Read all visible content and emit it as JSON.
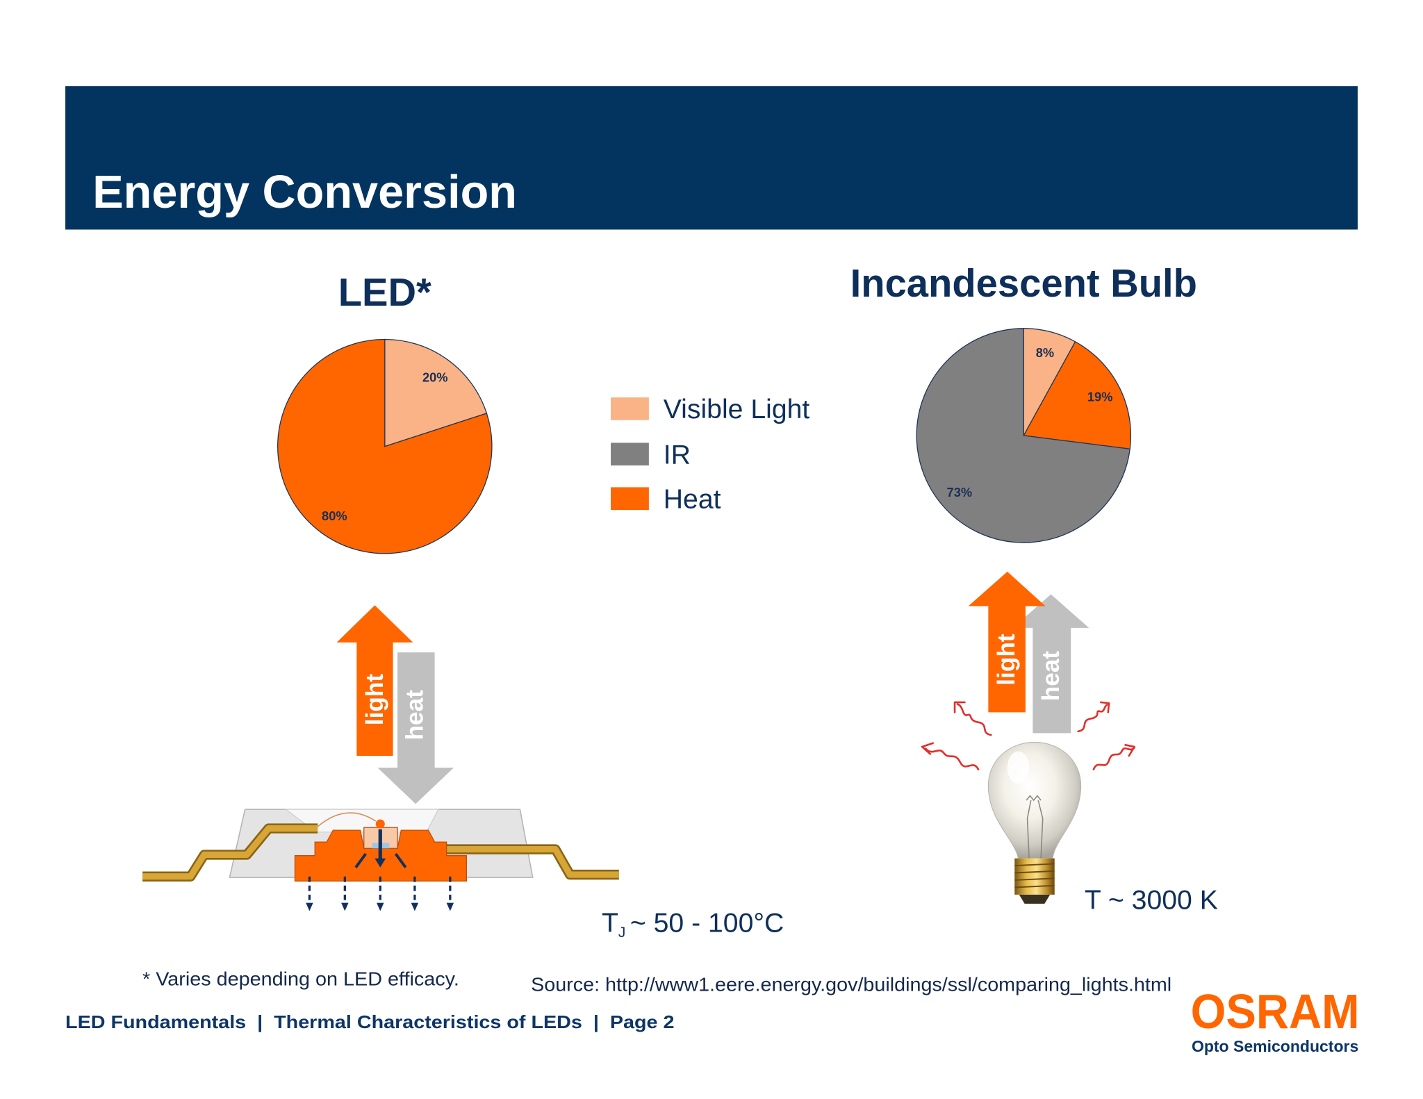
{
  "slide": {
    "title": "Energy Conversion",
    "footnote": "* Varies depending on LED efficacy.",
    "source": "Source: http://www1.eere.energy.gov/buildings/ssl/comparing_lights.html",
    "footer": "LED Fundamentals  |  Thermal Characteristics of LEDs  |  Page 2"
  },
  "colors": {
    "header_bg": "#03345F",
    "text": "#0E2F5A",
    "visible_light": "#F9B386",
    "ir": "#808080",
    "heat": "#FF6600",
    "arrow_heat": "#C0C0C0",
    "wave": "#E0302A"
  },
  "legend": [
    {
      "label": "Visible Light",
      "color": "#F9B386"
    },
    {
      "label": "IR",
      "color": "#808080"
    },
    {
      "label": "Heat",
      "color": "#FF6600"
    }
  ],
  "led": {
    "light_label": "light",
    "heat_label": "heat",
    "temp": {
      "symbol": "T",
      "subscript": "J",
      "value": "~ 50 - 100°C"
    }
  },
  "bulb": {
    "light_label": "light",
    "heat_label": "heat",
    "temp": "T ~ 3000 K"
  },
  "logo": {
    "brand": "OSRAM",
    "division": "Opto Semiconductors"
  },
  "chart_data": [
    {
      "type": "pie",
      "title": "LED*",
      "categories": [
        "Visible Light",
        "Heat"
      ],
      "values": [
        20,
        80
      ],
      "labels": [
        "20%",
        "80%"
      ],
      "colors": [
        "#F9B386",
        "#FF6600"
      ]
    },
    {
      "type": "pie",
      "title": "Incandescent Bulb",
      "categories": [
        "Visible Light",
        "Heat",
        "IR"
      ],
      "values": [
        8,
        19,
        73
      ],
      "labels": [
        "8%",
        "19%",
        "73%"
      ],
      "colors": [
        "#F9B386",
        "#FF6600",
        "#808080"
      ]
    }
  ]
}
